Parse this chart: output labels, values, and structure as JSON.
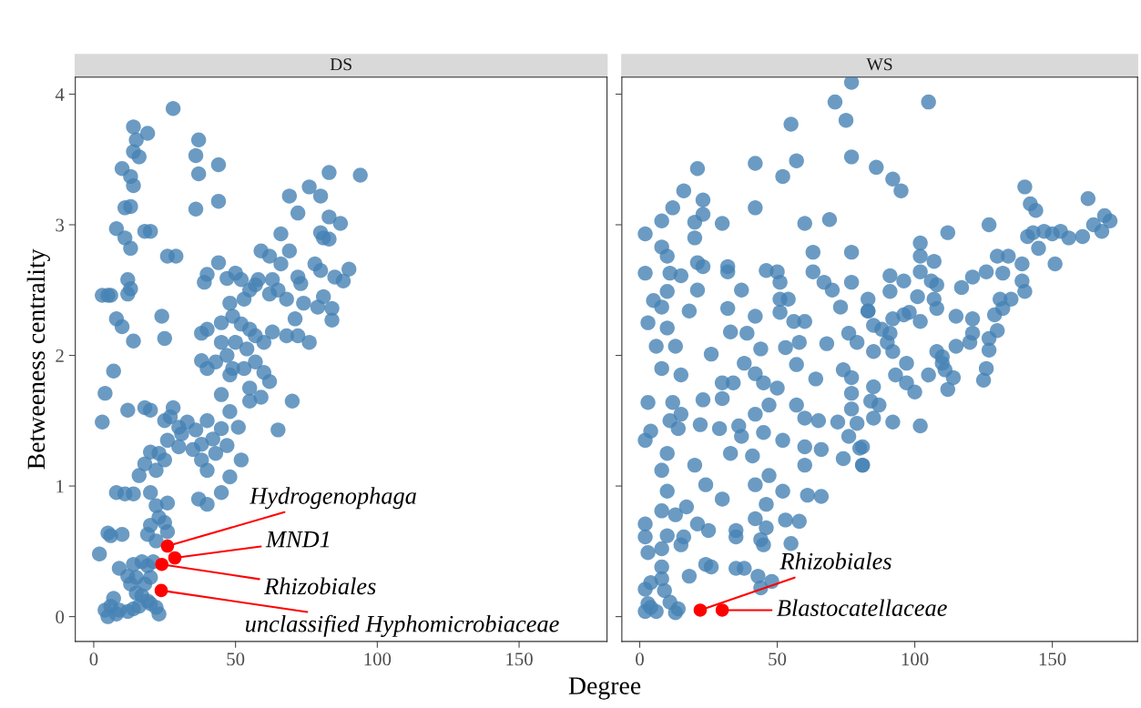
{
  "chart_data": [
    {
      "type": "scatter",
      "title": "DS",
      "xlabel": "Degree",
      "ylabel": "Betweeness centrality",
      "xlim": [
        -6.5,
        181
      ],
      "ylim": [
        -0.19,
        4.13
      ],
      "xticks": [
        0,
        50,
        100,
        150
      ],
      "yticks": [
        0,
        1,
        2,
        3,
        4
      ],
      "grid": false,
      "marker": "circle",
      "series": [
        {
          "color": "#4682b4",
          "x": [
            28,
            14,
            15,
            19,
            14,
            16,
            37,
            36,
            10,
            13,
            37,
            44,
            14,
            11,
            13,
            36,
            44,
            8,
            11,
            13,
            18,
            20,
            26,
            29,
            39,
            3,
            5,
            6,
            12,
            13,
            12,
            8,
            10,
            14,
            25,
            24,
            4,
            3,
            7,
            76,
            83,
            94,
            69,
            80,
            72,
            83,
            87,
            80,
            81,
            83,
            66,
            59,
            62,
            69,
            58,
            66,
            72,
            73,
            80,
            78,
            85,
            90,
            88,
            81,
            84,
            84,
            79,
            74,
            68,
            65,
            63,
            62,
            55,
            52,
            57,
            50,
            44,
            47,
            40,
            48,
            53,
            71,
            72,
            76,
            68,
            63,
            60,
            57,
            55,
            52,
            49,
            45,
            40,
            38,
            45,
            50,
            54,
            47,
            43,
            38,
            40,
            49,
            53,
            57,
            60,
            62,
            55,
            48,
            55,
            59,
            45,
            65,
            70,
            51,
            48,
            12,
            18,
            20,
            25,
            30,
            28,
            27,
            31,
            33,
            36,
            40,
            35,
            38,
            42,
            30,
            26,
            23,
            25,
            20,
            18,
            16,
            22,
            40,
            38,
            43,
            47,
            48,
            52,
            45,
            37,
            40,
            45,
            8,
            11,
            14,
            20,
            22,
            26,
            23,
            25,
            20,
            26,
            19,
            22,
            5,
            6,
            10,
            2,
            14,
            17,
            19,
            21,
            9,
            12,
            15,
            18,
            20,
            13,
            15,
            17,
            19,
            20,
            22,
            7,
            4,
            6,
            9,
            12,
            14,
            16,
            8,
            23,
            5
          ],
          "values": [
            3.89,
            3.75,
            3.65,
            3.7,
            3.56,
            3.52,
            3.65,
            3.53,
            3.43,
            3.37,
            3.39,
            3.46,
            3.3,
            3.13,
            3.14,
            3.12,
            3.18,
            2.97,
            2.9,
            2.82,
            2.95,
            2.95,
            2.76,
            2.76,
            2.56,
            2.46,
            2.46,
            2.46,
            2.47,
            2.51,
            2.58,
            2.28,
            2.22,
            2.11,
            2.13,
            2.3,
            1.71,
            1.49,
            1.88,
            3.29,
            3.4,
            3.38,
            3.22,
            3.22,
            3.09,
            3.06,
            3.01,
            2.94,
            2.9,
            2.89,
            2.93,
            2.8,
            2.76,
            2.8,
            2.58,
            2.7,
            2.6,
            2.55,
            2.65,
            2.7,
            2.6,
            2.66,
            2.57,
            2.45,
            2.36,
            2.27,
            2.37,
            2.4,
            2.43,
            2.5,
            2.58,
            2.47,
            2.5,
            2.58,
            2.54,
            2.63,
            2.71,
            2.59,
            2.62,
            2.4,
            2.43,
            2.28,
            2.15,
            2.1,
            2.15,
            2.18,
            2.1,
            2.15,
            2.2,
            2.24,
            2.3,
            2.25,
            2.2,
            2.17,
            2.1,
            2.1,
            2.05,
            2.0,
            1.95,
            1.96,
            1.9,
            1.9,
            1.9,
            1.95,
            1.87,
            1.8,
            1.75,
            1.85,
            1.65,
            1.68,
            1.7,
            1.43,
            1.65,
            1.45,
            1.57,
            1.58,
            1.6,
            1.58,
            1.5,
            1.45,
            1.6,
            1.53,
            1.4,
            1.49,
            1.43,
            1.5,
            1.28,
            1.32,
            1.36,
            1.3,
            1.35,
            1.25,
            1.2,
            1.26,
            1.17,
            1.08,
            1.12,
            1.12,
            1.2,
            1.25,
            1.31,
            1.07,
            1.2,
            1.44,
            0.9,
            0.86,
            0.95,
            0.95,
            0.94,
            0.94,
            0.95,
            0.85,
            0.87,
            0.76,
            0.72,
            0.7,
            0.65,
            0.63,
            0.58,
            0.64,
            0.62,
            0.63,
            0.48,
            0.4,
            0.42,
            0.39,
            0.42,
            0.37,
            0.31,
            0.3,
            0.25,
            0.3,
            0.25,
            0.18,
            0.16,
            0.12,
            0.1,
            0.07,
            0.14,
            0.05,
            0.08,
            0.05,
            0.04,
            0.06,
            0.08,
            0.02,
            0.02,
            0.0
          ]
        },
        {
          "color": "#ff0000",
          "x": [
            26,
            28.6,
            24,
            23.8
          ],
          "values": [
            0.54,
            0.45,
            0.4,
            0.2
          ]
        }
      ],
      "annotations": [
        {
          "text": "Hydrogenophaga",
          "x": 26,
          "y": 0.54
        },
        {
          "text": "MND1",
          "x": 28.6,
          "y": 0.45
        },
        {
          "text": "Rhizobiales",
          "x": 24,
          "y": 0.4
        },
        {
          "text": "unclassified Hyphomicrobiaceae",
          "x": 23.8,
          "y": 0.2
        }
      ]
    },
    {
      "type": "scatter",
      "title": "WS",
      "xlim": [
        -6.5,
        181
      ],
      "ylim": [
        -0.19,
        4.13
      ],
      "xticks": [
        0,
        50,
        100,
        150
      ],
      "yticks": [
        0,
        1,
        2,
        3,
        4
      ],
      "tick_labels": "x",
      "grid": false,
      "marker": "circle",
      "series": [
        {
          "color": "#4682b4",
          "x": [
            140,
            163,
            169,
            171,
            165,
            168,
            161,
            156,
            153,
            150,
            147,
            143,
            141,
            145,
            151,
            139,
            140,
            139,
            142,
            144,
            127,
            130,
            134,
            132,
            126,
            121,
            117,
            131,
            135,
            132,
            129,
            121,
            115,
            121,
            120,
            115,
            130,
            127,
            127,
            126,
            125,
            112,
            110,
            111,
            112,
            114,
            108,
            110,
            102,
            102,
            107,
            102,
            106,
            108,
            96,
            91,
            91,
            101,
            107,
            108,
            96,
            102,
            98,
            83,
            83,
            92,
            88,
            91,
            85,
            90,
            85,
            92,
            97,
            93,
            97,
            100,
            105,
            85,
            84,
            87,
            85,
            92,
            102,
            81,
            80,
            2,
            8,
            12,
            16,
            21,
            23,
            23,
            20,
            20,
            30,
            42,
            42,
            55,
            57,
            52,
            71,
            75,
            77,
            77,
            60,
            69,
            77,
            2,
            8,
            10,
            11,
            15,
            21,
            23,
            32,
            32,
            10,
            5,
            8,
            21,
            18,
            3,
            10,
            6,
            13,
            26,
            8,
            15,
            32,
            37,
            42,
            39,
            33,
            46,
            50,
            51,
            51,
            54,
            51,
            56,
            60,
            63,
            63,
            67,
            70,
            73,
            77,
            83,
            76,
            79,
            68,
            58,
            53,
            44,
            57,
            38,
            42,
            45,
            50,
            47,
            30,
            30,
            34,
            64,
            74,
            77,
            77,
            72,
            77,
            57,
            60,
            65,
            79,
            76,
            81,
            74,
            81,
            3,
            12,
            23,
            15,
            11,
            14,
            22,
            29,
            36,
            42,
            37,
            33,
            41,
            45,
            52,
            60,
            66,
            60,
            2,
            4,
            10,
            8,
            20,
            24,
            30,
            42,
            47,
            46,
            52,
            61,
            66,
            10,
            8,
            13,
            17,
            21,
            25,
            35,
            42,
            46,
            53,
            58,
            2,
            2,
            3,
            10,
            8,
            15,
            16,
            35,
            44,
            45,
            55,
            24,
            26,
            35,
            38,
            43,
            48,
            44,
            18,
            8,
            8,
            4,
            2,
            9,
            11,
            3,
            2,
            6,
            13,
            14,
            4,
            105,
            86,
            92,
            95
          ],
          "values": [
            3.29,
            3.2,
            3.07,
            3.03,
            3.0,
            2.95,
            2.91,
            2.9,
            2.95,
            2.93,
            2.95,
            2.94,
            2.91,
            2.82,
            2.7,
            2.7,
            2.49,
            2.57,
            3.16,
            3.11,
            3.0,
            2.76,
            2.76,
            2.63,
            2.64,
            2.6,
            2.52,
            2.43,
            2.43,
            2.36,
            2.31,
            2.28,
            2.3,
            2.17,
            2.1,
            2.07,
            2.19,
            2.13,
            2.04,
            1.9,
            1.81,
            2.94,
            1.99,
            1.89,
            1.74,
            1.83,
            2.03,
            1.94,
            2.86,
            2.76,
            2.72,
            2.64,
            2.57,
            2.54,
            2.57,
            2.61,
            2.49,
            2.45,
            2.43,
            2.36,
            2.31,
            2.26,
            2.33,
            2.43,
            2.34,
            2.28,
            2.2,
            2.17,
            2.23,
            2.1,
            2.03,
            2.03,
            1.94,
            1.85,
            1.79,
            1.72,
            1.85,
            1.76,
            1.65,
            1.62,
            1.52,
            1.49,
            1.46,
            1.16,
            1.29,
            2.93,
            3.03,
            3.13,
            3.26,
            3.43,
            3.19,
            3.08,
            3.02,
            2.9,
            3.01,
            3.47,
            3.13,
            3.77,
            3.49,
            3.37,
            3.94,
            3.8,
            4.09,
            3.52,
            3.01,
            3.04,
            2.79,
            2.63,
            2.83,
            2.76,
            2.63,
            2.61,
            2.71,
            2.68,
            2.68,
            2.64,
            2.49,
            2.42,
            2.37,
            2.5,
            2.34,
            2.25,
            2.21,
            2.07,
            2.07,
            2.01,
            1.9,
            1.85,
            2.36,
            2.5,
            2.3,
            2.17,
            2.18,
            2.65,
            2.64,
            2.56,
            2.43,
            2.43,
            2.33,
            2.26,
            2.26,
            2.64,
            2.79,
            2.56,
            2.5,
            2.37,
            2.56,
            2.34,
            2.17,
            2.1,
            2.09,
            2.1,
            2.06,
            2.05,
            1.93,
            1.94,
            1.86,
            1.79,
            1.75,
            1.62,
            1.79,
            1.67,
            1.79,
            1.82,
            1.89,
            1.83,
            1.71,
            1.49,
            1.59,
            1.62,
            1.52,
            1.5,
            1.48,
            1.38,
            1.3,
            1.21,
            1.16,
            1.64,
            1.64,
            1.66,
            1.55,
            1.5,
            1.44,
            1.47,
            1.44,
            1.46,
            1.55,
            1.38,
            1.25,
            1.23,
            1.41,
            1.35,
            1.3,
            1.28,
            1.16,
            1.35,
            1.42,
            1.25,
            1.12,
            1.16,
            1.01,
            0.9,
            1.01,
            1.08,
            0.86,
            0.96,
            0.93,
            0.92,
            0.96,
            0.81,
            0.78,
            0.84,
            0.71,
            0.66,
            0.66,
            0.75,
            0.68,
            0.74,
            0.73,
            0.71,
            0.61,
            0.49,
            0.62,
            0.52,
            0.55,
            0.61,
            0.61,
            0.59,
            0.55,
            0.56,
            0.4,
            0.38,
            0.37,
            0.37,
            0.31,
            0.27,
            0.22,
            0.31,
            0.38,
            0.29,
            0.26,
            0.21,
            0.2,
            0.11,
            0.1,
            0.04,
            0.04,
            0.03,
            0.06,
            0.07,
            3.94,
            3.44,
            3.35,
            3.26
          ]
        },
        {
          "color": "#ff0000",
          "x": [
            22,
            30
          ],
          "values": [
            0.05,
            0.05
          ]
        }
      ],
      "annotations": [
        {
          "text": "Rhizobiales",
          "x": 22,
          "y": 0.05
        },
        {
          "text": "Blastocatellaceae",
          "x": 30,
          "y": 0.05
        }
      ]
    }
  ]
}
